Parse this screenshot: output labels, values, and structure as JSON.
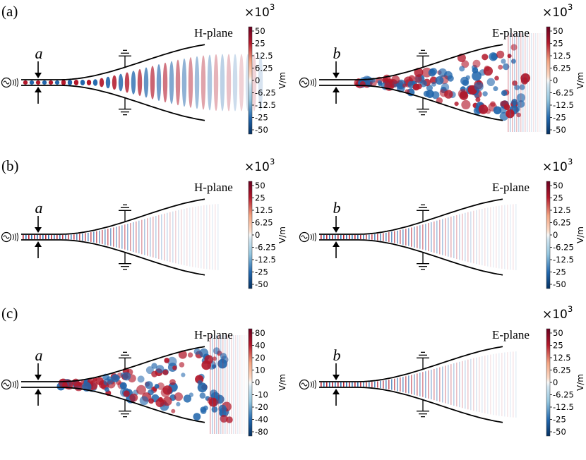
{
  "figure": {
    "panels": [
      {
        "label": "(a)",
        "left": {
          "plane": "H-plane",
          "marker": "a",
          "pattern": "guided",
          "colorbar": {
            "scale": "×10",
            "power": "3",
            "ticks": [
              "50",
              "25",
              "12.5",
              "6.25",
              "0",
              "-6.25",
              "-12.5",
              "-25",
              "-50"
            ],
            "unit": "V/m"
          }
        },
        "right": {
          "plane": "E-plane",
          "marker": "b",
          "pattern": "chaotic",
          "colorbar": {
            "scale": "×10",
            "power": "3",
            "ticks": [
              "50",
              "25",
              "12.5",
              "6.25",
              "0",
              "-6.25",
              "-12.5",
              "-25",
              "-50"
            ],
            "unit": "V/m"
          }
        }
      },
      {
        "label": "(b)",
        "left": {
          "plane": "H-plane",
          "marker": "a",
          "pattern": "fine",
          "colorbar": {
            "scale": "×10",
            "power": "3",
            "ticks": [
              "50",
              "25",
              "12.5",
              "6.25",
              "0",
              "-6.25",
              "-12.5",
              "-25",
              "-50"
            ],
            "unit": "V/m"
          }
        },
        "right": {
          "plane": "E-plane",
          "marker": "b",
          "pattern": "fine",
          "colorbar": {
            "scale": "×10",
            "power": "3",
            "ticks": [
              "50",
              "25",
              "12.5",
              "6.25",
              "0",
              "-6.25",
              "-12.5",
              "-25",
              "-50"
            ],
            "unit": "V/m"
          }
        }
      },
      {
        "label": "(c)",
        "left": {
          "plane": "H-plane",
          "marker": "a",
          "pattern": "chaotic",
          "colorbar": {
            "scale": "",
            "power": "",
            "ticks": [
              "80",
              "40",
              "20",
              "10",
              "0",
              "-10",
              "-20",
              "-40",
              "-80"
            ],
            "unit": "V/m"
          }
        },
        "right": {
          "plane": "E-plane",
          "marker": "b",
          "pattern": "fine",
          "colorbar": {
            "scale": "×10",
            "power": "3",
            "ticks": [
              "50",
              "25",
              "12.5",
              "6.25",
              "0",
              "-6.25",
              "-12.5",
              "-25",
              "-50"
            ],
            "unit": "V/m"
          }
        }
      }
    ],
    "colors": {
      "positive": "#b2182b",
      "negative": "#2166ac",
      "zero": "#f7f7f7",
      "outline": "#000000"
    }
  }
}
